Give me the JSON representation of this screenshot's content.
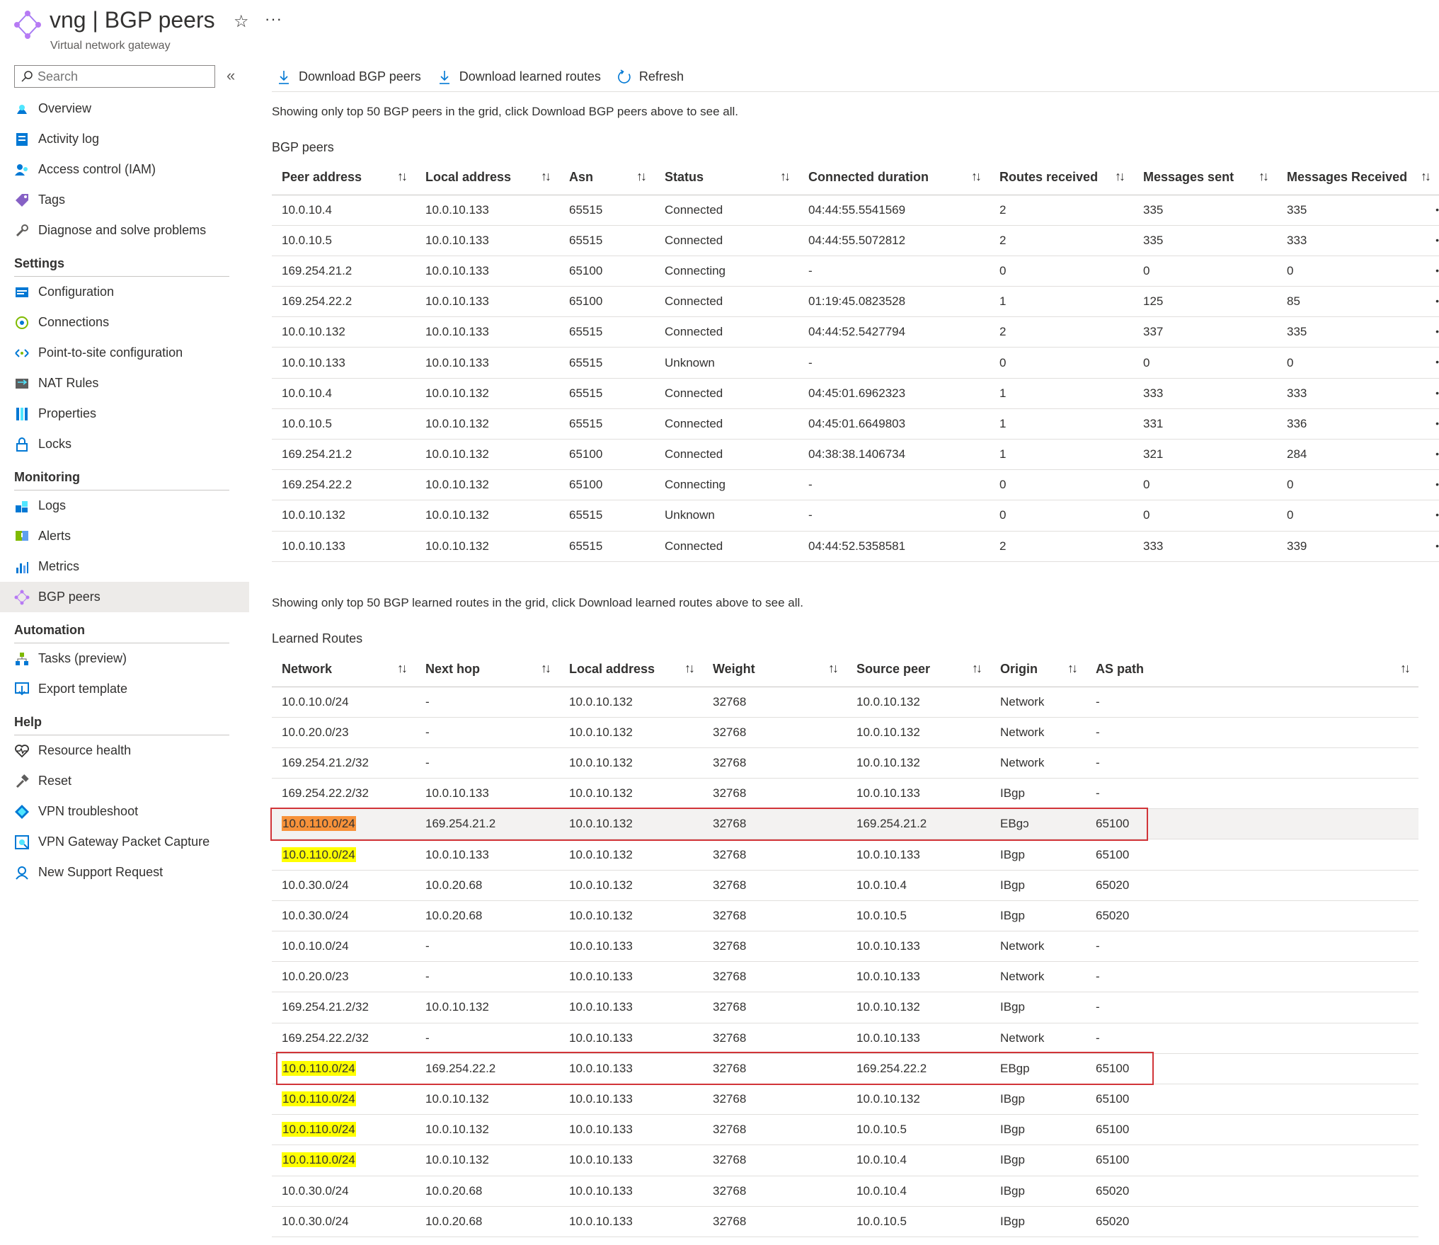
{
  "header": {
    "title": "vng | BGP peers",
    "subtitle": "Virtual network gateway",
    "star_icon": "☆",
    "more_icon": "···"
  },
  "sidebar": {
    "search_placeholder": "Search",
    "collapse_icon": "«",
    "groups": [
      {
        "section": "",
        "items": [
          {
            "label": "Overview",
            "icon": "overview-icon"
          },
          {
            "label": "Activity log",
            "icon": "activity-log-icon"
          },
          {
            "label": "Access control (IAM)",
            "icon": "iam-icon"
          },
          {
            "label": "Tags",
            "icon": "tag-icon"
          },
          {
            "label": "Diagnose and solve problems",
            "icon": "wrench-icon"
          }
        ]
      },
      {
        "section": "Settings",
        "items": [
          {
            "label": "Configuration",
            "icon": "configuration-icon"
          },
          {
            "label": "Connections",
            "icon": "connections-icon"
          },
          {
            "label": "Point-to-site configuration",
            "icon": "point-to-site-icon"
          },
          {
            "label": "NAT Rules",
            "icon": "nat-rules-icon"
          },
          {
            "label": "Properties",
            "icon": "properties-icon"
          },
          {
            "label": "Locks",
            "icon": "lock-icon"
          }
        ]
      },
      {
        "section": "Monitoring",
        "items": [
          {
            "label": "Logs",
            "icon": "logs-icon"
          },
          {
            "label": "Alerts",
            "icon": "alerts-icon"
          },
          {
            "label": "Metrics",
            "icon": "metrics-icon"
          },
          {
            "label": "BGP peers",
            "icon": "bgp-peers-icon",
            "active": true
          }
        ]
      },
      {
        "section": "Automation",
        "items": [
          {
            "label": "Tasks (preview)",
            "icon": "tasks-icon"
          },
          {
            "label": "Export template",
            "icon": "export-template-icon"
          }
        ]
      },
      {
        "section": "Help",
        "items": [
          {
            "label": "Resource health",
            "icon": "heart-icon"
          },
          {
            "label": "Reset",
            "icon": "hammer-icon"
          },
          {
            "label": "VPN troubleshoot",
            "icon": "vpn-troubleshoot-icon"
          },
          {
            "label": "VPN Gateway Packet Capture",
            "icon": "packet-capture-icon"
          },
          {
            "label": "New Support Request",
            "icon": "support-icon"
          }
        ]
      }
    ]
  },
  "toolbar": {
    "download_peers": "Download BGP peers",
    "download_routes": "Download learned routes",
    "refresh": "Refresh"
  },
  "peers_info": "Showing only top 50 BGP peers in the grid, click Download BGP peers above to see all.",
  "peers_title": "BGP peers",
  "peers_columns": [
    "Peer address",
    "Local address",
    "Asn",
    "Status",
    "Connected duration",
    "Routes received",
    "Messages sent",
    "Messages Received"
  ],
  "peers_rows": [
    [
      "10.0.10.4",
      "10.0.10.133",
      "65515",
      "Connected",
      "04:44:55.5541569",
      "2",
      "335",
      "335"
    ],
    [
      "10.0.10.5",
      "10.0.10.133",
      "65515",
      "Connected",
      "04:44:55.5072812",
      "2",
      "335",
      "333"
    ],
    [
      "169.254.21.2",
      "10.0.10.133",
      "65100",
      "Connecting",
      "-",
      "0",
      "0",
      "0"
    ],
    [
      "169.254.22.2",
      "10.0.10.133",
      "65100",
      "Connected",
      "01:19:45.0823528",
      "1",
      "125",
      "85"
    ],
    [
      "10.0.10.132",
      "10.0.10.133",
      "65515",
      "Connected",
      "04:44:52.5427794",
      "2",
      "337",
      "335"
    ],
    [
      "10.0.10.133",
      "10.0.10.133",
      "65515",
      "Unknown",
      "-",
      "0",
      "0",
      "0"
    ],
    [
      "10.0.10.4",
      "10.0.10.132",
      "65515",
      "Connected",
      "04:45:01.6962323",
      "1",
      "333",
      "333"
    ],
    [
      "10.0.10.5",
      "10.0.10.132",
      "65515",
      "Connected",
      "04:45:01.6649803",
      "1",
      "331",
      "336"
    ],
    [
      "169.254.21.2",
      "10.0.10.132",
      "65100",
      "Connected",
      "04:38:38.1406734",
      "1",
      "321",
      "284"
    ],
    [
      "169.254.22.2",
      "10.0.10.132",
      "65100",
      "Connecting",
      "-",
      "0",
      "0",
      "0"
    ],
    [
      "10.0.10.132",
      "10.0.10.132",
      "65515",
      "Unknown",
      "-",
      "0",
      "0",
      "0"
    ],
    [
      "10.0.10.133",
      "10.0.10.132",
      "65515",
      "Connected",
      "04:44:52.5358581",
      "2",
      "333",
      "339"
    ]
  ],
  "routes_info": "Showing only top 50 BGP learned routes in the grid, click Download learned routes above to see all.",
  "routes_title": "Learned Routes",
  "routes_columns": [
    "Network",
    "Next hop",
    "Local address",
    "Weight",
    "Source peer",
    "Origin",
    "AS path"
  ],
  "routes_rows": [
    {
      "cells": [
        "10.0.10.0/24",
        "-",
        "10.0.10.132",
        "32768",
        "10.0.10.132",
        "Network",
        "-"
      ]
    },
    {
      "cells": [
        "10.0.20.0/23",
        "-",
        "10.0.10.132",
        "32768",
        "10.0.10.132",
        "Network",
        "-"
      ]
    },
    {
      "cells": [
        "169.254.21.2/32",
        "-",
        "10.0.10.132",
        "32768",
        "10.0.10.132",
        "Network",
        "-"
      ]
    },
    {
      "cells": [
        "169.254.22.2/32",
        "10.0.10.133",
        "10.0.10.132",
        "32768",
        "10.0.10.133",
        "IBgp",
        "-"
      ]
    },
    {
      "cells": [
        "10.0.110.0/24",
        "169.254.21.2",
        "10.0.10.132",
        "32768",
        "169.254.21.2",
        "EBgɔ",
        "65100"
      ],
      "highlight": "orange",
      "selected": true,
      "boxed": true
    },
    {
      "cells": [
        "10.0.110.0/24",
        "10.0.10.133",
        "10.0.10.132",
        "32768",
        "10.0.10.133",
        "IBgp",
        "65100"
      ],
      "highlight": "yellow"
    },
    {
      "cells": [
        "10.0.30.0/24",
        "10.0.20.68",
        "10.0.10.132",
        "32768",
        "10.0.10.4",
        "IBgp",
        "65020"
      ]
    },
    {
      "cells": [
        "10.0.30.0/24",
        "10.0.20.68",
        "10.0.10.132",
        "32768",
        "10.0.10.5",
        "IBgp",
        "65020"
      ]
    },
    {
      "cells": [
        "10.0.10.0/24",
        "-",
        "10.0.10.133",
        "32768",
        "10.0.10.133",
        "Network",
        "-"
      ]
    },
    {
      "cells": [
        "10.0.20.0/23",
        "-",
        "10.0.10.133",
        "32768",
        "10.0.10.133",
        "Network",
        "-"
      ]
    },
    {
      "cells": [
        "169.254.21.2/32",
        "10.0.10.132",
        "10.0.10.133",
        "32768",
        "10.0.10.132",
        "IBgp",
        "-"
      ]
    },
    {
      "cells": [
        "169.254.22.2/32",
        "-",
        "10.0.10.133",
        "32768",
        "10.0.10.133",
        "Network",
        "-"
      ]
    },
    {
      "cells": [
        "10.0.110.0/24",
        "169.254.22.2",
        "10.0.10.133",
        "32768",
        "169.254.22.2",
        "EBgp",
        "65100"
      ],
      "highlight": "yellow",
      "boxed": true
    },
    {
      "cells": [
        "10.0.110.0/24",
        "10.0.10.132",
        "10.0.10.133",
        "32768",
        "10.0.10.132",
        "IBgp",
        "65100"
      ],
      "highlight": "yellow"
    },
    {
      "cells": [
        "10.0.110.0/24",
        "10.0.10.132",
        "10.0.10.133",
        "32768",
        "10.0.10.5",
        "IBgp",
        "65100"
      ],
      "highlight": "yellow"
    },
    {
      "cells": [
        "10.0.110.0/24",
        "10.0.10.132",
        "10.0.10.133",
        "32768",
        "10.0.10.4",
        "IBgp",
        "65100"
      ],
      "highlight": "yellow"
    },
    {
      "cells": [
        "10.0.30.0/24",
        "10.0.20.68",
        "10.0.10.133",
        "32768",
        "10.0.10.4",
        "IBgp",
        "65020"
      ]
    },
    {
      "cells": [
        "10.0.30.0/24",
        "10.0.20.68",
        "10.0.10.133",
        "32768",
        "10.0.10.5",
        "IBgp",
        "65020"
      ]
    }
  ],
  "colors": {
    "highlight_yellow": "#ffff00",
    "highlight_orange": "#f7923a",
    "annotation_red": "#d13438",
    "accent_blue": "#0078d4"
  }
}
